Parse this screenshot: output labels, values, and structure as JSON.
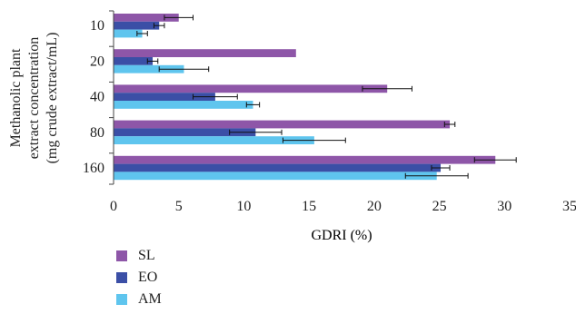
{
  "chart_data": {
    "type": "bar",
    "orientation": "horizontal",
    "categories": [
      "10",
      "20",
      "40",
      "80",
      "160"
    ],
    "series": [
      {
        "name": "SL",
        "color": "#8e56a8",
        "values": [
          5.0,
          14.0,
          21.0,
          25.8,
          29.3
        ],
        "errors": [
          1.1,
          0.0,
          1.9,
          0.4,
          1.6
        ]
      },
      {
        "name": "EO",
        "color": "#3b4fa6",
        "values": [
          3.5,
          3.0,
          7.8,
          10.9,
          25.1
        ],
        "errors": [
          0.4,
          0.4,
          1.7,
          2.0,
          0.7
        ]
      },
      {
        "name": "AM",
        "color": "#5fc5ee",
        "values": [
          2.2,
          5.4,
          10.7,
          15.4,
          24.8
        ],
        "errors": [
          0.4,
          1.9,
          0.5,
          2.4,
          2.4
        ]
      }
    ],
    "xlabel": "GDRI (%)",
    "ylabel": [
      "Methanolic plant",
      "extract concentration",
      "(mg crude extract/mL)"
    ],
    "xlim": [
      0,
      35
    ],
    "xticks": [
      "0",
      "5",
      "10",
      "15",
      "20",
      "25",
      "30",
      "35"
    ],
    "grid": false,
    "legend_position": "bottom-left"
  }
}
